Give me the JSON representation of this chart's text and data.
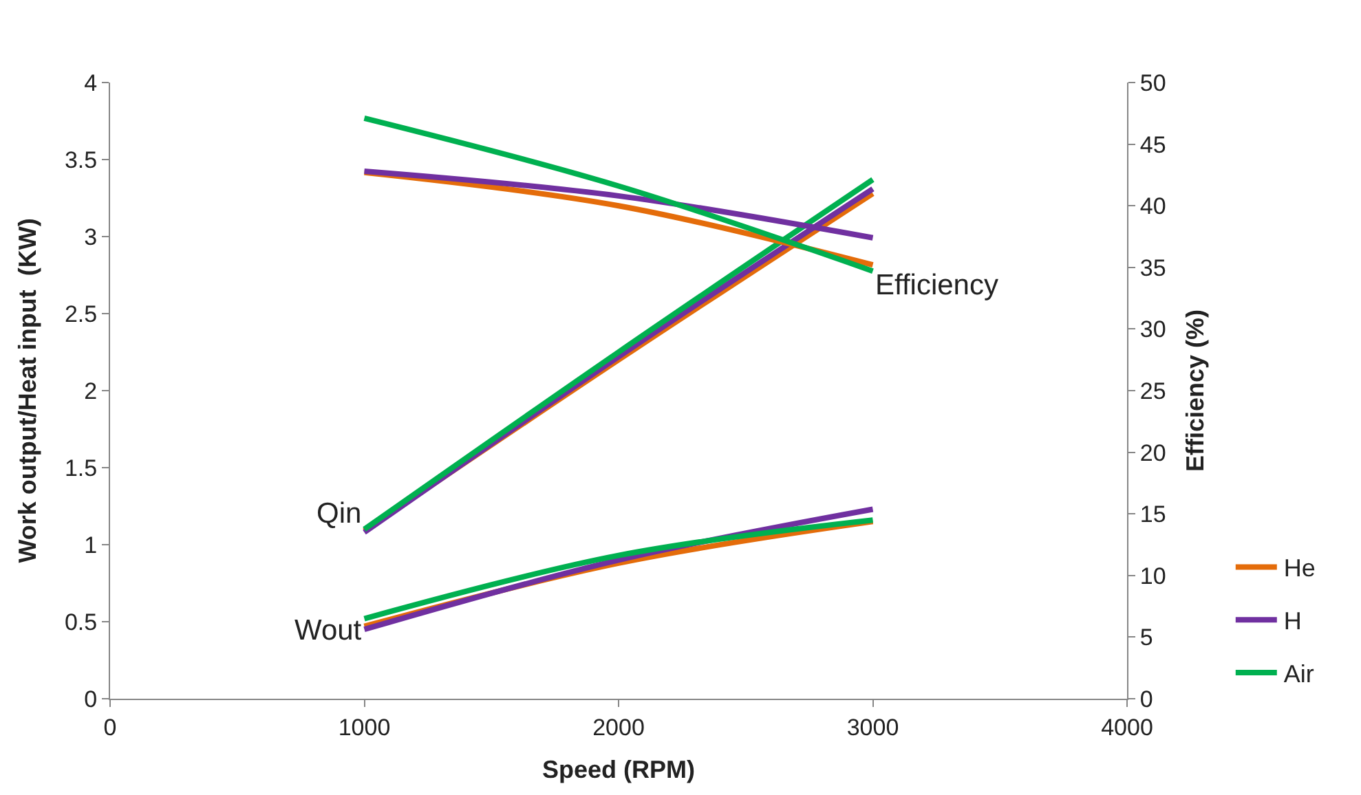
{
  "chart_data": {
    "type": "line",
    "xlabel": "Speed (RPM)",
    "ylabel": "Work output/Heat input  (KW)",
    "y2label": "Efficiency (%)",
    "x": [
      1000,
      2000,
      3000
    ],
    "series": [
      {
        "name": "He",
        "color": "#e46c0a",
        "values": [
          0.47,
          0.88,
          1.15
        ]
      },
      {
        "name": "H",
        "color": "#7030a0",
        "values": [
          0.45,
          0.9,
          1.23
        ]
      },
      {
        "name": "Air",
        "color": "#00b050",
        "values": [
          0.52,
          0.93,
          1.16
        ]
      },
      {
        "color": "#e46c0a",
        "values": [
          1.09,
          2.2,
          3.28
        ]
      },
      {
        "color": "#7030a0",
        "values": [
          1.08,
          2.22,
          3.31
        ]
      },
      {
        "color": "#00b050",
        "values": [
          1.1,
          2.25,
          3.37
        ]
      },
      {
        "color": "#e46c0a",
        "axis": "y2",
        "values": [
          42.7,
          40,
          35.2
        ]
      },
      {
        "color": "#7030a0",
        "axis": "y2",
        "values": [
          42.8,
          40.8,
          37.4
        ]
      },
      {
        "color": "#00b050",
        "axis": "y2",
        "values": [
          47.1,
          41.6,
          34.7
        ]
      }
    ],
    "annotations": [
      "Wout",
      "Qin",
      "Efficiency"
    ],
    "xlim": [
      0,
      4000
    ],
    "xticks": [
      0,
      1000,
      2000,
      3000,
      4000
    ],
    "ylim": [
      0,
      4
    ],
    "yticks": [
      0,
      0.5,
      1,
      1.5,
      2,
      2.5,
      3,
      3.5,
      4
    ],
    "y2lim": [
      0,
      50
    ],
    "y2ticks": [
      0,
      5,
      10,
      15,
      20,
      25,
      30,
      35,
      40,
      45,
      50
    ],
    "legend": "bottom right",
    "marker": "none",
    "line_style": "solid"
  }
}
